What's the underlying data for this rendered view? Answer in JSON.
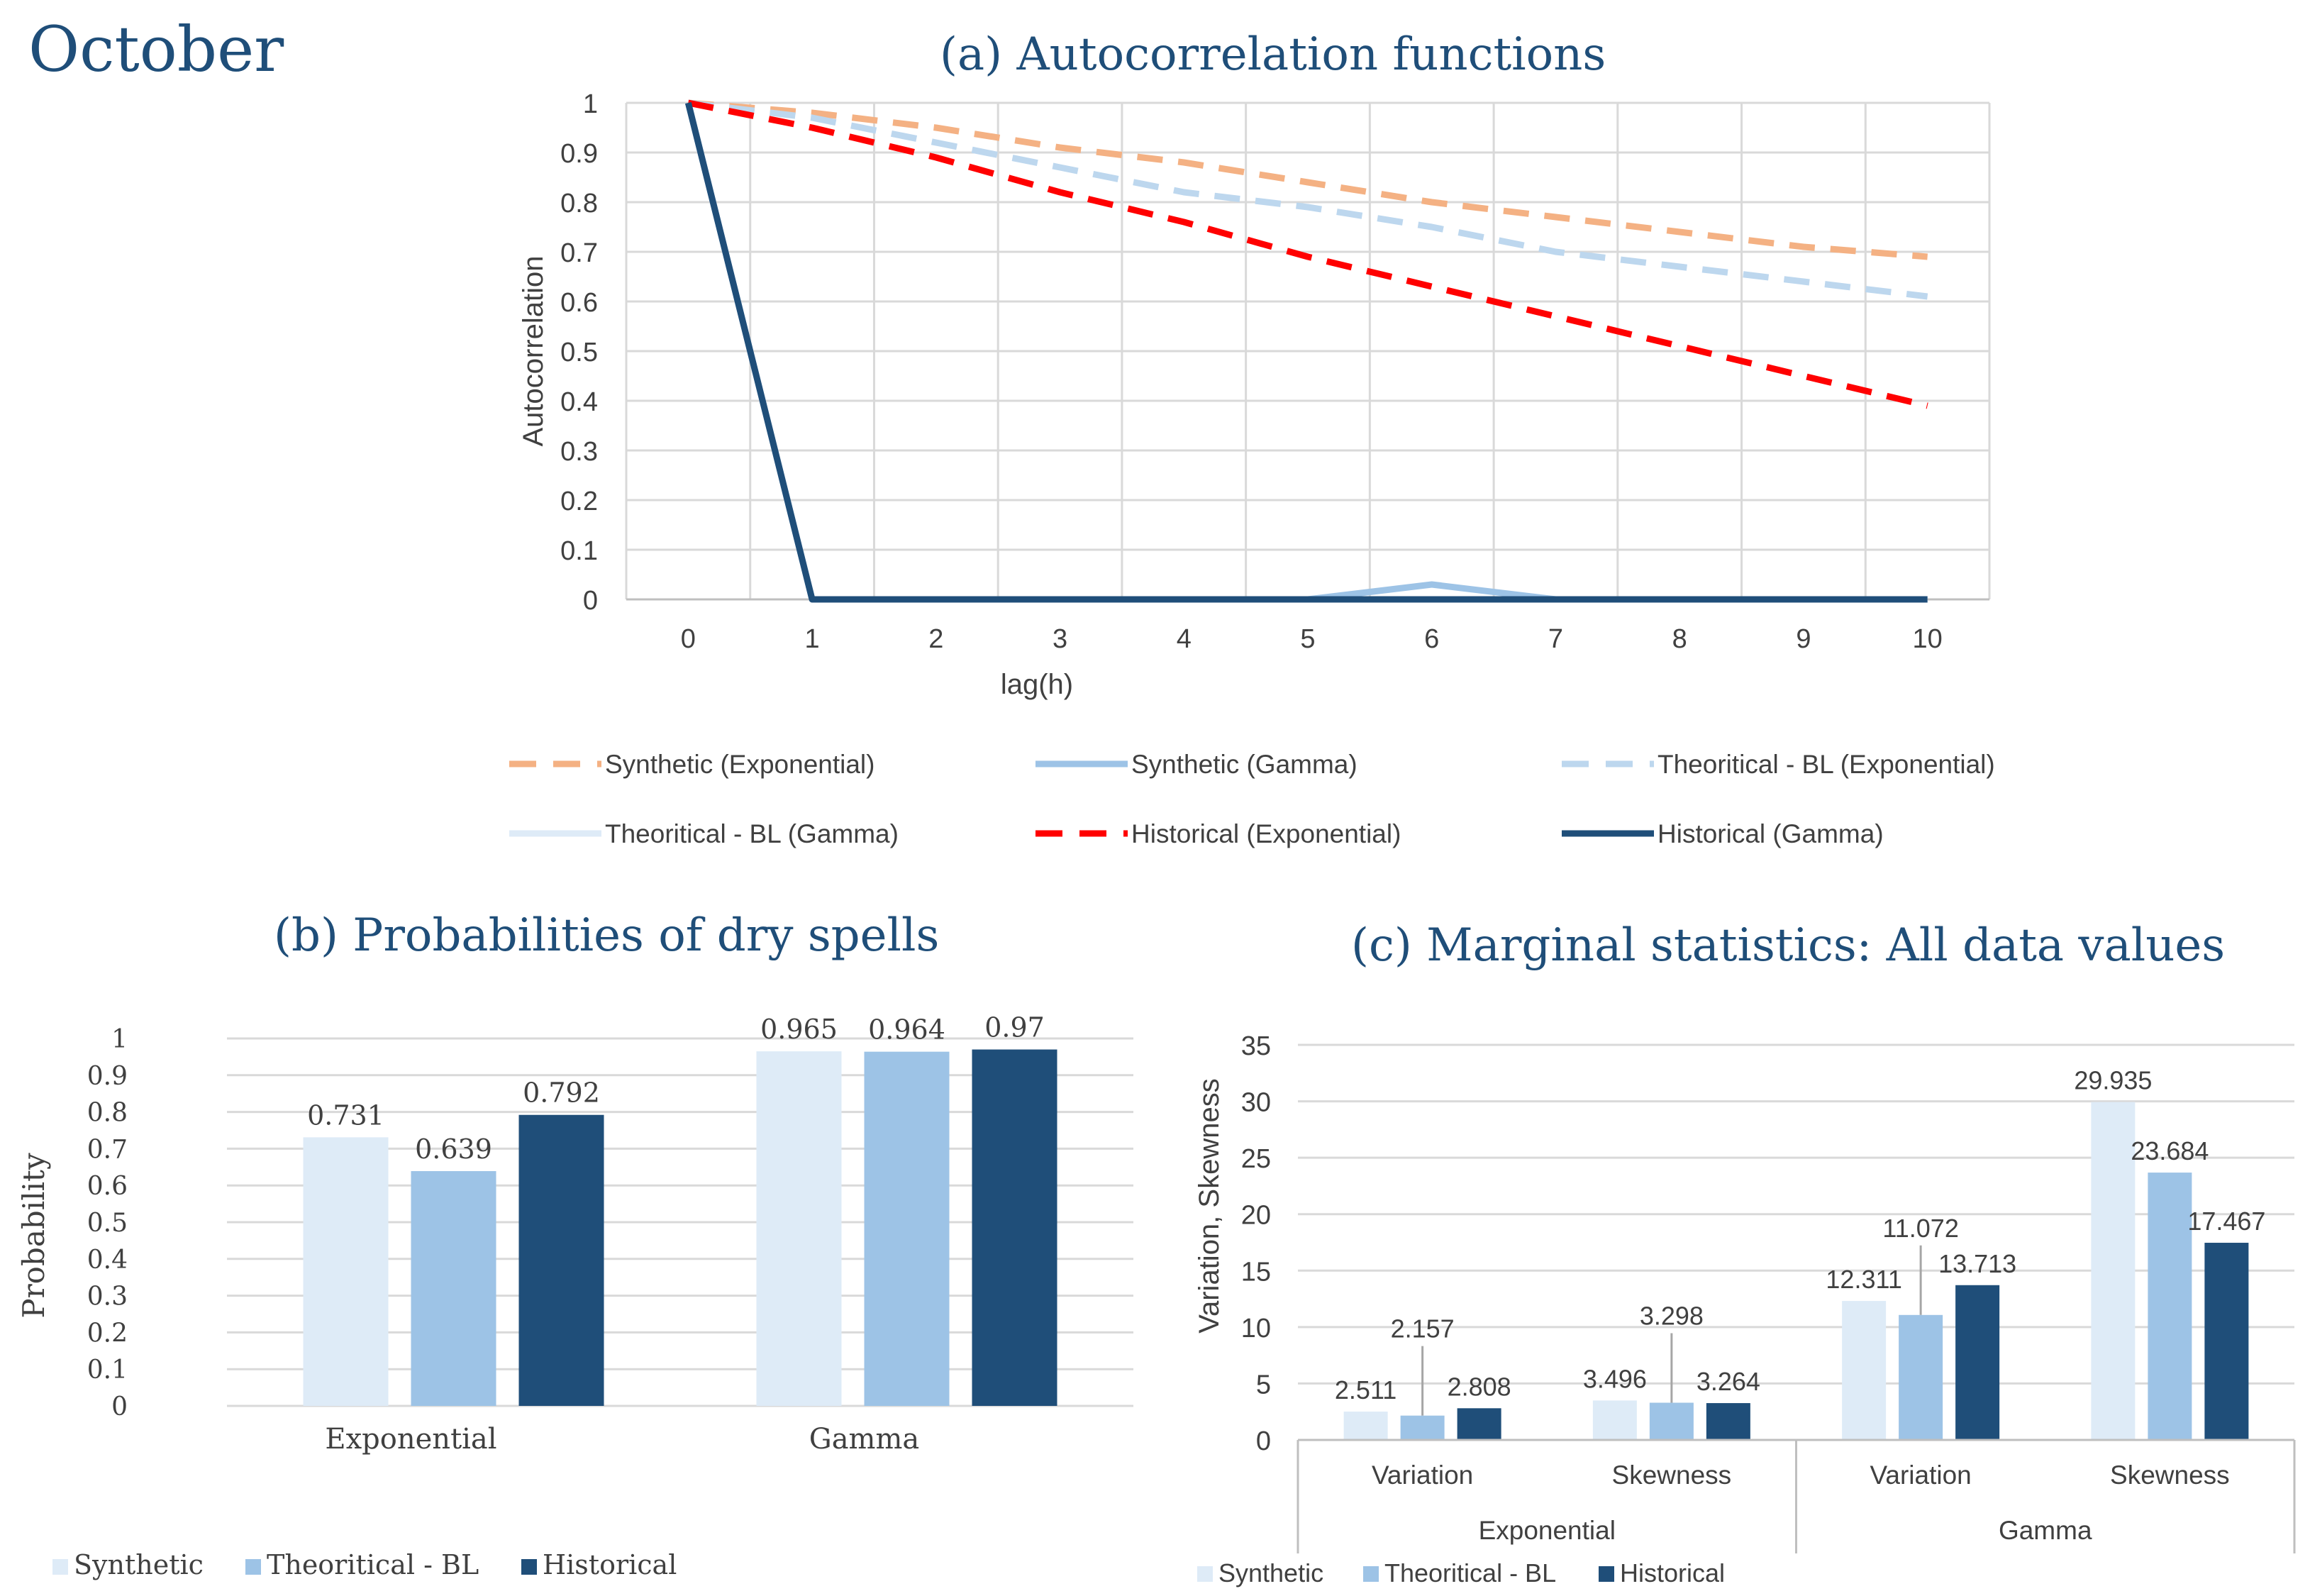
{
  "page": {
    "title": "October"
  },
  "colors": {
    "synthetic_exp": "#f4b183",
    "synthetic_gamma": "#9dc3e6",
    "theor_exp": "#bdd7ee",
    "theor_gamma": "#deebf7",
    "hist_exp": "#ff0000",
    "hist_gamma": "#1f4e79",
    "bar_synthetic": "#deebf7",
    "bar_theor": "#9dc3e6",
    "bar_hist": "#1f4e79"
  },
  "chart_data": [
    {
      "id": "a",
      "type": "line",
      "title": "(a) Autocorrelation functions",
      "xlabel": "lag(h)",
      "ylabel": "Autocorrelation",
      "x": [
        0,
        1,
        2,
        3,
        4,
        5,
        6,
        7,
        8,
        9,
        10
      ],
      "xticks": [
        "0",
        "1",
        "2",
        "3",
        "4",
        "5",
        "6",
        "7",
        "8",
        "9",
        "10"
      ],
      "ylim": [
        0,
        1
      ],
      "yticks": [
        "0",
        "0.1",
        "0.2",
        "0.3",
        "0.4",
        "0.5",
        "0.6",
        "0.7",
        "0.8",
        "0.9",
        "1"
      ],
      "grid": true,
      "legend": "bottom",
      "series": [
        {
          "name": "Synthetic (Exponential)",
          "style": "dashed",
          "color_key": "synthetic_exp",
          "values": [
            1,
            0.98,
            0.95,
            0.91,
            0.88,
            0.84,
            0.8,
            0.77,
            0.74,
            0.71,
            0.69
          ]
        },
        {
          "name": "Synthetic (Gamma)",
          "style": "solid",
          "color_key": "synthetic_gamma",
          "values": [
            1,
            0,
            0,
            0,
            0,
            0,
            0.03,
            0,
            0,
            0,
            0
          ]
        },
        {
          "name": "Theoritical - BL (Exponential)",
          "style": "dashed",
          "color_key": "theor_exp",
          "values": [
            1,
            0.97,
            0.92,
            0.87,
            0.82,
            0.79,
            0.75,
            0.7,
            0.67,
            0.64,
            0.61
          ]
        },
        {
          "name": "Theoritical - BL (Gamma)",
          "style": "solid",
          "color_key": "theor_gamma",
          "values": [
            1,
            0,
            0,
            0,
            0,
            0,
            0,
            0,
            0,
            0,
            0
          ]
        },
        {
          "name": "Historical (Exponential)",
          "style": "dashed",
          "color_key": "hist_exp",
          "values": [
            1,
            0.95,
            0.89,
            0.82,
            0.76,
            0.69,
            0.63,
            0.57,
            0.51,
            0.45,
            0.39
          ]
        },
        {
          "name": "Historical (Gamma)",
          "style": "solid",
          "color_key": "hist_gamma",
          "values": [
            1,
            0,
            0,
            0,
            0,
            0,
            0,
            0,
            0,
            0,
            0
          ]
        }
      ]
    },
    {
      "id": "b",
      "type": "bar",
      "title": "(b) Probabilities of dry spells",
      "xlabel": "",
      "ylabel": "Probability",
      "categories": [
        "Exponential",
        "Gamma"
      ],
      "ylim": [
        0,
        1
      ],
      "yticks": [
        "0",
        "0.1",
        "0.2",
        "0.3",
        "0.4",
        "0.5",
        "0.6",
        "0.7",
        "0.8",
        "0.9",
        "1"
      ],
      "grid": true,
      "legend": "bottom-left",
      "series": [
        {
          "name": "Synthetic",
          "color_key": "bar_synthetic",
          "values": [
            0.731,
            0.965
          ],
          "labels": [
            "0.731",
            "0.965"
          ]
        },
        {
          "name": "Theoritical - BL",
          "color_key": "bar_theor",
          "values": [
            0.639,
            0.964
          ],
          "labels": [
            "0.639",
            "0.964"
          ]
        },
        {
          "name": "Historical",
          "color_key": "bar_hist",
          "values": [
            0.792,
            0.97
          ],
          "labels": [
            "0.792",
            "0.97"
          ]
        }
      ]
    },
    {
      "id": "c",
      "type": "bar",
      "title": "(c) Marginal statistics: All data values",
      "xlabel": "",
      "ylabel": "Variation, Skewness",
      "categories": [
        "Variation",
        "Skewness",
        "Variation",
        "Skewness"
      ],
      "groups": [
        "Exponential",
        "Gamma"
      ],
      "ylim": [
        0,
        35
      ],
      "yticks": [
        "0",
        "5",
        "10",
        "15",
        "20",
        "25",
        "30",
        "35"
      ],
      "grid": true,
      "legend": "bottom-left",
      "series": [
        {
          "name": "Synthetic",
          "color_key": "bar_synthetic",
          "values": [
            2.511,
            3.496,
            12.311,
            29.935
          ],
          "labels": [
            "2.511",
            "3.496",
            "12.311",
            "29.935"
          ]
        },
        {
          "name": "Theoritical - BL",
          "color_key": "bar_theor",
          "values": [
            2.157,
            3.298,
            11.072,
            23.684
          ],
          "labels": [
            "2.157",
            "3.298",
            "11.072",
            "23.684"
          ]
        },
        {
          "name": "Historical",
          "color_key": "bar_hist",
          "values": [
            2.808,
            3.264,
            13.713,
            17.467
          ],
          "labels": [
            "2.808",
            "3.264",
            "13.713",
            "17.467"
          ]
        }
      ]
    }
  ]
}
